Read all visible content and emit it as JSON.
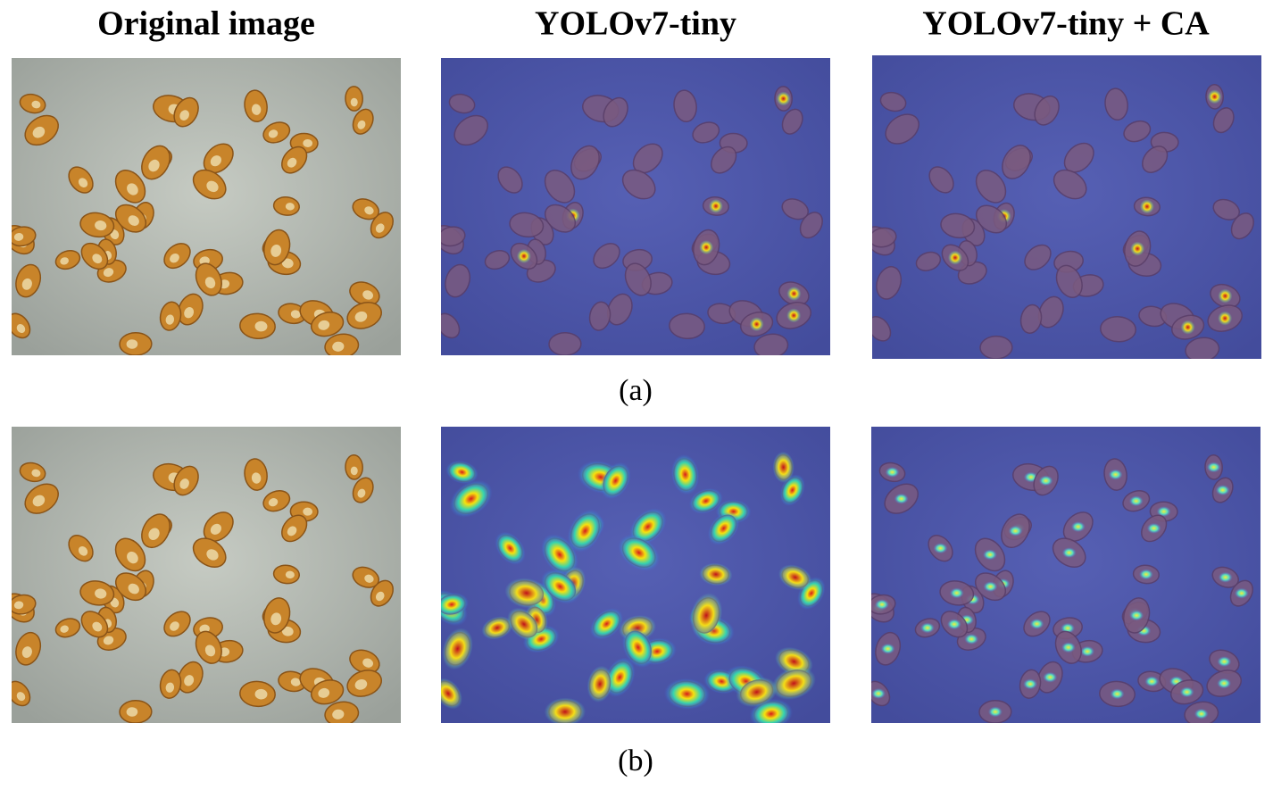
{
  "header": {
    "columns": [
      "Original image",
      "YOLOv7-tiny",
      "YOLOv7-tiny + CA"
    ]
  },
  "rows": [
    {
      "label": "(a)"
    },
    {
      "label": "(b)"
    }
  ]
}
